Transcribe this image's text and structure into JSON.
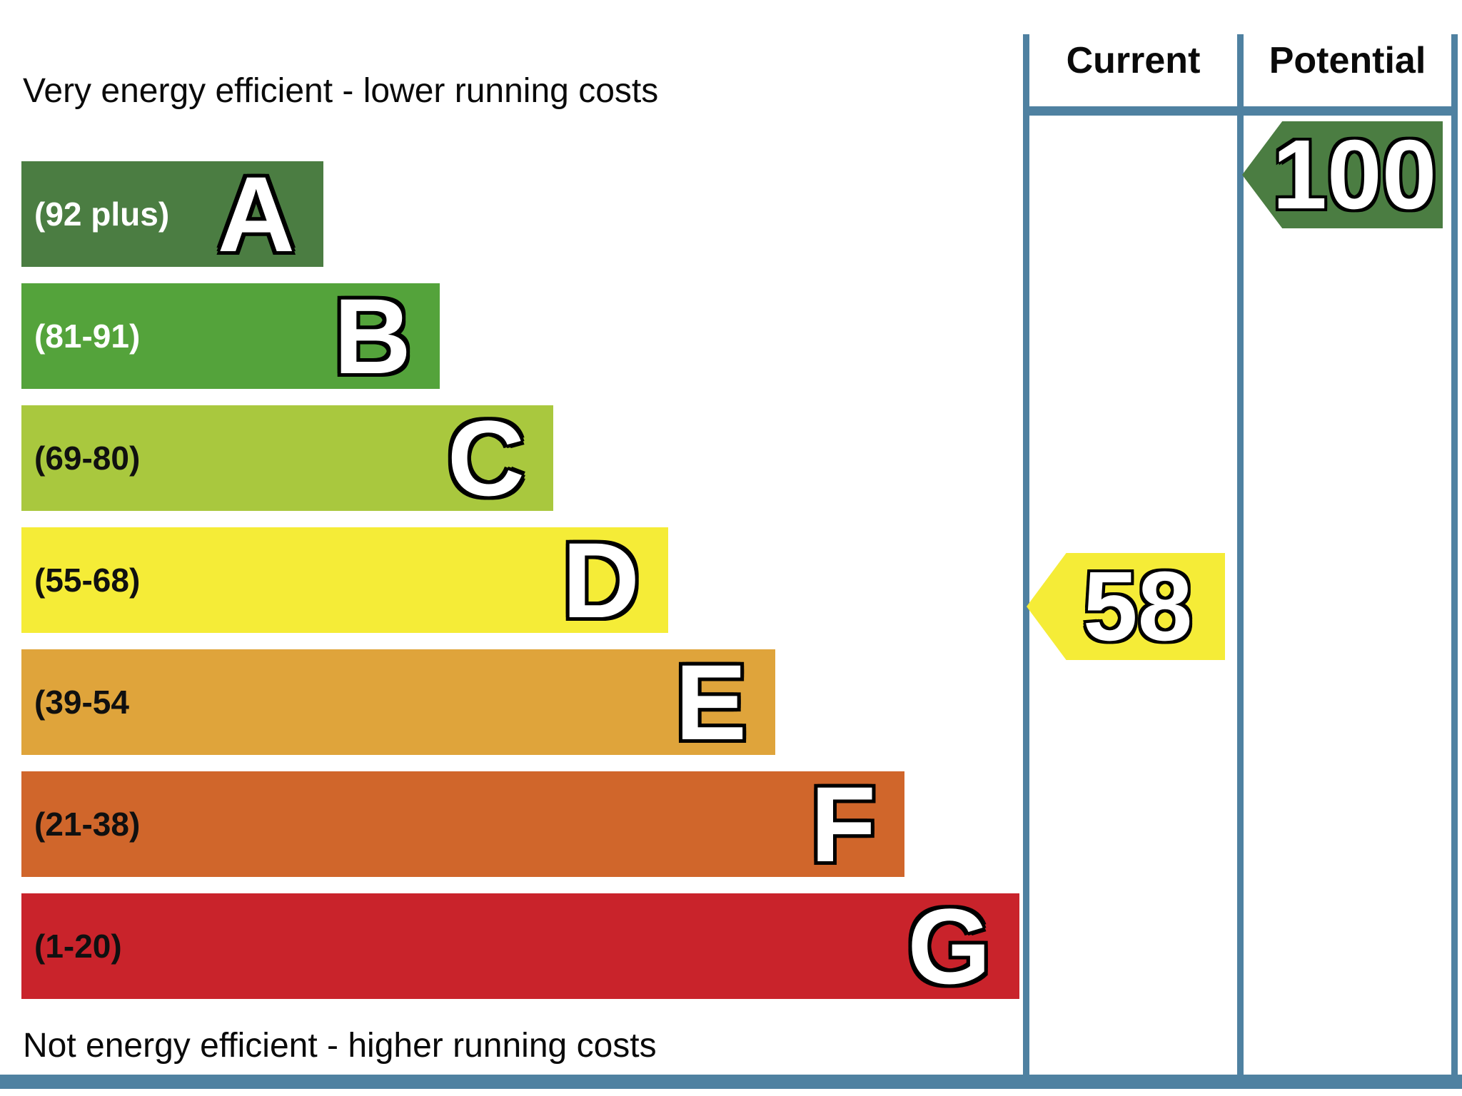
{
  "chart_data": {
    "type": "epc_energy_rating_bar",
    "title_top": "Very energy efficient - lower running costs",
    "title_bottom": "Not energy efficient - higher running costs",
    "columns": [
      "Current",
      "Potential"
    ],
    "bands": [
      {
        "letter": "A",
        "range": "(92 plus)",
        "color": "#4b7d42"
      },
      {
        "letter": "B",
        "range": "(81-91)",
        "color": "#54a33b"
      },
      {
        "letter": "C",
        "range": "(69-80)",
        "color": "#a9c83e"
      },
      {
        "letter": "D",
        "range": "(55-68)",
        "color": "#f5ec37"
      },
      {
        "letter": "E",
        "range": "(39-54",
        "color": "#dfa43b"
      },
      {
        "letter": "F",
        "range": "(21-38)",
        "color": "#d0662b"
      },
      {
        "letter": "G",
        "range": "(1-20)",
        "color": "#c9232b"
      }
    ],
    "current": {
      "value": 58,
      "band": "D",
      "color": "#f5ec37"
    },
    "potential": {
      "value": 100,
      "band": "A",
      "color": "#4b7d42"
    },
    "grid_line_color": "#4f81a1",
    "legend_position": "top-columns",
    "ylim": [
      1,
      100
    ]
  }
}
